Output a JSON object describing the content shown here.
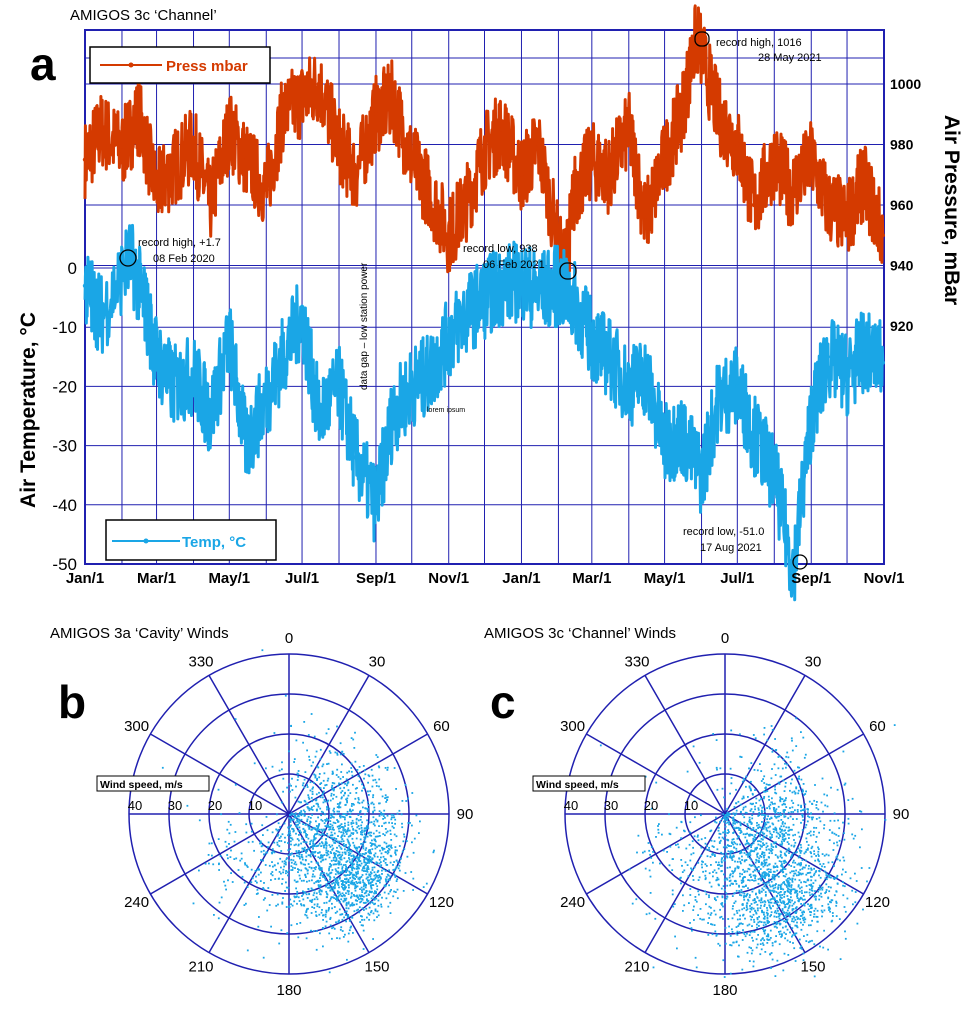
{
  "panel_a": {
    "letter": "a",
    "title": "AMIGOS 3c ‘Channel’",
    "y_left_label": "Air Temperature, °C",
    "y_right_label": "Air Pressure, mBar",
    "legend_pressure": "Press mbar",
    "legend_temp": "Temp, °C",
    "gap_note": "data gap – low station power",
    "placeholder_note": "lorem ipsum",
    "ann_record_high_pressure": [
      "record high, 1016",
      "28 May 2021"
    ],
    "ann_record_low_pressure": [
      "record low, 938",
      "06 Feb 2021"
    ],
    "ann_record_high_temp": [
      "record high, +1.7",
      "08 Feb 2020"
    ],
    "ann_record_low_temp": [
      "record low, -51.0",
      "17 Aug 2021"
    ]
  },
  "panel_b": {
    "letter": "b",
    "title": "AMIGOS 3a ‘Cavity’ Winds",
    "speed_label": "Wind speed, m/s"
  },
  "panel_c": {
    "letter": "c",
    "title": "AMIGOS 3c ‘Channel’ Winds",
    "speed_label": "Wind speed, m/s"
  },
  "colors": {
    "pressure": "#d43a00",
    "temperature": "#1aa6e6",
    "axes": "#2020b0"
  },
  "chart_data": [
    {
      "type": "line",
      "title": "AMIGOS 3c ‘Channel’",
      "xlabel": "",
      "x_ticks": [
        "Jan/1",
        "Mar/1",
        "May/1",
        "Jul/1",
        "Sep/1",
        "Nov/1",
        "Jan/1",
        "Mar/1",
        "May/1",
        "Jul/1",
        "Sep/1",
        "Nov/1"
      ],
      "x_tick_dates": [
        "2020-01-01",
        "2020-03-01",
        "2020-05-01",
        "2020-07-01",
        "2020-09-01",
        "2020-11-01",
        "2021-01-01",
        "2021-03-01",
        "2021-05-01",
        "2021-07-01",
        "2021-09-01",
        "2021-11-01"
      ],
      "y_left": {
        "label": "Air Temperature, °C",
        "ticks": [
          0,
          -10,
          -20,
          -30,
          -40,
          -50
        ],
        "range": [
          -50,
          0
        ]
      },
      "y_right": {
        "label": "Air Pressure, mBar",
        "ticks": [
          1000,
          980,
          960,
          940,
          920
        ],
        "range": [
          920,
          1000
        ]
      },
      "grid": true,
      "series": [
        {
          "name": "Press mbar",
          "axis": "right",
          "x": [
            "2020-01-01",
            "2020-01-15",
            "2020-02-01",
            "2020-02-15",
            "2020-03-01",
            "2020-03-15",
            "2020-04-01",
            "2020-04-15",
            "2020-05-01",
            "2020-05-15",
            "2020-06-01",
            "2020-06-15",
            "2020-07-01",
            "2020-07-15",
            "2020-08-01",
            "2020-08-15",
            "2020-09-01",
            "2020-09-15",
            "2020-10-01",
            "2020-10-15",
            "2020-11-01",
            "2020-11-15",
            "2020-12-01",
            "2020-12-15",
            "2021-01-01",
            "2021-01-15",
            "2021-02-06",
            "2021-02-15",
            "2021-03-01",
            "2021-03-15",
            "2021-04-01",
            "2021-04-15",
            "2021-05-01",
            "2021-05-15",
            "2021-05-28",
            "2021-06-15",
            "2021-07-01",
            "2021-07-15",
            "2021-08-01",
            "2021-08-15",
            "2021-09-01",
            "2021-09-15",
            "2021-10-01",
            "2021-10-15",
            "2021-10-31"
          ],
          "y": [
            975,
            985,
            978,
            990,
            965,
            972,
            980,
            960,
            985,
            975,
            965,
            990,
            995,
            1000,
            980,
            970,
            990,
            995,
            975,
            965,
            950,
            960,
            978,
            985,
            970,
            980,
            938,
            965,
            975,
            970,
            985,
            955,
            975,
            990,
            1016,
            990,
            980,
            960,
            975,
            965,
            975,
            960,
            955,
            968,
            950
          ]
        },
        {
          "name": "Temp, °C",
          "axis": "left",
          "x": [
            "2020-01-01",
            "2020-01-15",
            "2020-02-08",
            "2020-02-20",
            "2020-03-01",
            "2020-03-15",
            "2020-04-01",
            "2020-04-15",
            "2020-05-01",
            "2020-05-15",
            "2020-06-01",
            "2020-06-15",
            "2020-07-01",
            "2020-07-15",
            "2020-08-01",
            "2020-08-15",
            "2020-09-01",
            "2020-09-15",
            "2020-10-01",
            "2020-10-15",
            "2020-11-01",
            "2020-11-15",
            "2020-12-01",
            "2020-12-15",
            "2021-01-01",
            "2021-01-15",
            "2021-02-01",
            "2021-02-15",
            "2021-03-01",
            "2021-03-15",
            "2021-04-01",
            "2021-04-15",
            "2021-05-01",
            "2021-05-15",
            "2021-06-01",
            "2021-06-15",
            "2021-07-01",
            "2021-07-15",
            "2021-08-01",
            "2021-08-17",
            "2021-09-01",
            "2021-09-15",
            "2021-10-01",
            "2021-10-15",
            "2021-10-31"
          ],
          "y": [
            -3,
            -8,
            1.7,
            -6,
            -15,
            -20,
            -18,
            -25,
            -12,
            -30,
            -22,
            -15,
            -8,
            -25,
            -20,
            -32,
            -40,
            -25,
            -20,
            -18,
            -12,
            -8,
            -5,
            -3,
            -2,
            -4,
            -3,
            -6,
            -12,
            -15,
            -20,
            -18,
            -30,
            -28,
            -35,
            -22,
            -20,
            -28,
            -35,
            -51,
            -25,
            -15,
            -18,
            -14,
            -16
          ]
        }
      ],
      "annotations": [
        "record high, 1016 28 May 2021",
        "record low, 938 06 Feb 2021",
        "record high, +1.7 08 Feb 2020",
        "record low, -51.0 17 Aug 2021",
        "data gap – low station power"
      ]
    },
    {
      "type": "scatter",
      "title": "AMIGOS 3a ‘Cavity’ Winds",
      "polar": true,
      "angle_ticks": [
        0,
        30,
        60,
        90,
        120,
        150,
        180,
        210,
        240,
        300,
        330
      ],
      "radial_ticks": [
        10,
        20,
        30,
        40
      ],
      "radial_label": "Wind speed, m/s",
      "series": [
        {
          "name": "",
          "clusters": [
            {
              "direction_deg": 125,
              "speed_mean": 15,
              "spread": 9
            },
            {
              "direction_deg": 135,
              "speed_mean": 25,
              "spread": 6
            }
          ]
        }
      ]
    },
    {
      "type": "scatter",
      "title": "AMIGOS 3c ‘Channel’ Winds",
      "polar": true,
      "angle_ticks": [
        0,
        30,
        60,
        90,
        120,
        150,
        180,
        210,
        240,
        300,
        330
      ],
      "radial_ticks": [
        10,
        20,
        30,
        40
      ],
      "radial_label": "Wind speed, m/s",
      "series": [
        {
          "name": "",
          "clusters": [
            {
              "direction_deg": 135,
              "speed_mean": 15,
              "spread": 10
            },
            {
              "direction_deg": 145,
              "speed_mean": 28,
              "spread": 7
            }
          ]
        }
      ]
    }
  ]
}
